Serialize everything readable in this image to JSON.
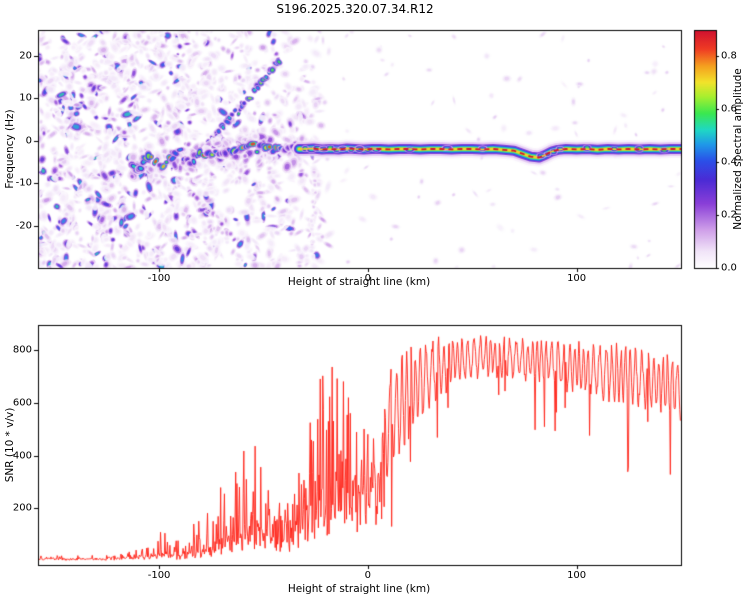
{
  "title": "S196.2025.320.07.34.R12",
  "colors": {
    "background": "#ffffff",
    "axis": "#000000",
    "snr_line": "#ff2015"
  },
  "chart_data": [
    {
      "type": "heatmap",
      "name": "doppler-spectrogram",
      "xlabel": "Height of straight line (km)",
      "ylabel": "Frequency (Hz)",
      "xlim": [
        -158,
        150
      ],
      "ylim": [
        -30,
        26
      ],
      "xticks": [
        -100,
        0,
        100
      ],
      "yticks": [
        -20,
        -10,
        0,
        10,
        20
      ],
      "colorbar": {
        "label": "Normalized spectral amplitude",
        "min": 0,
        "max": 0.9,
        "ticks": [
          "0.0",
          "0.2",
          "0.4",
          "0.6",
          "0.8"
        ],
        "stops": [
          {
            "p": 0.0,
            "c": "#ffffff"
          },
          {
            "p": 0.07,
            "c": "#f1e4f8"
          },
          {
            "p": 0.16,
            "c": "#cf9fe9"
          },
          {
            "p": 0.27,
            "c": "#8a3fd8"
          },
          {
            "p": 0.37,
            "c": "#4b2bd5"
          },
          {
            "p": 0.45,
            "c": "#2b50e8"
          },
          {
            "p": 0.52,
            "c": "#1f9ae8"
          },
          {
            "p": 0.58,
            "c": "#1fd8c4"
          },
          {
            "p": 0.65,
            "c": "#3be84f"
          },
          {
            "p": 0.72,
            "c": "#a8ef2f"
          },
          {
            "p": 0.78,
            "c": "#f2e32b"
          },
          {
            "p": 0.85,
            "c": "#f59e1f"
          },
          {
            "p": 0.92,
            "c": "#ef3b24"
          },
          {
            "p": 1.0,
            "c": "#cf1030"
          }
        ]
      },
      "trace": {
        "description": "Meteor head echo: Doppler frequency of peak spectral amplitude vs height; tight multicolor line with red dashed core near -2 Hz for heights above -30 km, scattered blob track wandering between -7 and -1 Hz below",
        "points": [
          [
            -113,
            -5.5
          ],
          [
            -110,
            -6.5
          ],
          [
            -107,
            -5
          ],
          [
            -104,
            -4
          ],
          [
            -101,
            -6
          ],
          [
            -98,
            -7
          ],
          [
            -96,
            -5.5
          ],
          [
            -93,
            -4
          ],
          [
            -90,
            -3
          ],
          [
            -87,
            -4.5
          ],
          [
            -84,
            -5
          ],
          [
            -81,
            -3.5
          ],
          [
            -78,
            -2.5
          ],
          [
            -75,
            -3.5
          ],
          [
            -72,
            -3
          ],
          [
            -69,
            -2
          ],
          [
            -66,
            -3
          ],
          [
            -63,
            -2.5
          ],
          [
            -60,
            -2.5
          ],
          [
            -57,
            -1.2
          ],
          [
            -54,
            -2
          ],
          [
            -51,
            -1.5
          ],
          [
            -48,
            -1.8
          ],
          [
            -45,
            -2.2
          ],
          [
            -42,
            -2
          ],
          [
            -39,
            -1.8
          ],
          [
            -36,
            -2
          ],
          [
            -33,
            -2
          ],
          [
            -30,
            -2
          ],
          [
            -26,
            -1.9
          ],
          [
            -22,
            -2.1
          ],
          [
            -18,
            -2
          ],
          [
            -14,
            -2.1
          ],
          [
            -10,
            -1.9
          ],
          [
            -6,
            -2
          ],
          [
            -2,
            -2.1
          ],
          [
            2,
            -2
          ],
          [
            6,
            -2
          ],
          [
            10,
            -2.1
          ],
          [
            15,
            -2
          ],
          [
            20,
            -2
          ],
          [
            25,
            -2.1
          ],
          [
            30,
            -2
          ],
          [
            35,
            -2
          ],
          [
            40,
            -2.1
          ],
          [
            45,
            -2
          ],
          [
            50,
            -2
          ],
          [
            55,
            -2.1
          ],
          [
            60,
            -2
          ],
          [
            65,
            -2.2
          ],
          [
            70,
            -2.4
          ],
          [
            74,
            -3.1
          ],
          [
            78,
            -3.8
          ],
          [
            82,
            -4
          ],
          [
            85,
            -3.4
          ],
          [
            88,
            -2.6
          ],
          [
            91,
            -2.2
          ],
          [
            95,
            -2
          ],
          [
            100,
            -2.1
          ],
          [
            105,
            -2
          ],
          [
            110,
            -2.2
          ],
          [
            115,
            -2
          ],
          [
            120,
            -2.1
          ],
          [
            125,
            -2
          ],
          [
            130,
            -2.1
          ],
          [
            135,
            -2
          ],
          [
            140,
            -2.1
          ],
          [
            145,
            -2
          ],
          [
            150,
            -2
          ]
        ],
        "bead_positions": [
          -30,
          -27,
          -24,
          -21,
          -18,
          -15,
          -12,
          -8,
          -4,
          0,
          4,
          20,
          38,
          55,
          83,
          86,
          89,
          92,
          105,
          118,
          130,
          142
        ],
        "cloud_count": 160
      },
      "streaks": [
        {
          "from": [
            -78,
            -2
          ],
          "to": [
            -42,
            19
          ],
          "step": 1.6,
          "v": [
            0.3,
            0.72
          ],
          "size": [
            2.2,
            4.6
          ]
        },
        {
          "from": [
            -86,
            -12
          ],
          "to": [
            -64,
            -23
          ],
          "step": 2.2,
          "v": [
            0.08,
            0.26
          ],
          "size": [
            2.0,
            4.0
          ]
        },
        {
          "from": [
            -27,
            -27
          ],
          "to": [
            -25,
            -8
          ],
          "step": 2.0,
          "v": [
            0.05,
            0.12
          ],
          "size": [
            1.6,
            3.0
          ]
        }
      ],
      "noise": {
        "seed": 1337,
        "left_count": 1500,
        "right_count": 90
      }
    },
    {
      "type": "line",
      "name": "snr-profile",
      "xlabel": "Height of straight line (km)",
      "ylabel": "SNR (10 * v/v)",
      "xlim": [
        -158,
        150
      ],
      "ylim": [
        -15,
        895
      ],
      "xticks": [
        -100,
        0,
        100
      ],
      "yticks": [
        200,
        400,
        600,
        800
      ],
      "line_color": "#ff2015",
      "seed": 4242,
      "envelope_description": "[height km, typical SNR, spike max SNR] read from figure",
      "envelope": [
        [
          -158,
          8,
          20
        ],
        [
          -120,
          10,
          25
        ],
        [
          -105,
          20,
          60
        ],
        [
          -97,
          30,
          130
        ],
        [
          -90,
          25,
          90
        ],
        [
          -82,
          40,
          160
        ],
        [
          -75,
          60,
          220
        ],
        [
          -68,
          90,
          300
        ],
        [
          -62,
          120,
          380
        ],
        [
          -56,
          150,
          470
        ],
        [
          -50,
          170,
          460
        ],
        [
          -45,
          140,
          380
        ],
        [
          -40,
          170,
          430
        ],
        [
          -36,
          160,
          420
        ],
        [
          -32,
          180,
          480
        ],
        [
          -28,
          220,
          620
        ],
        [
          -24,
          260,
          780
        ],
        [
          -20,
          280,
          840
        ],
        [
          -16,
          300,
          820
        ],
        [
          -12,
          340,
          860
        ],
        [
          -8,
          320,
          700
        ],
        [
          -4,
          360,
          640
        ],
        [
          0,
          420,
          620
        ],
        [
          6,
          480,
          680
        ],
        [
          12,
          560,
          760
        ],
        [
          18,
          620,
          800
        ],
        [
          24,
          680,
          830
        ],
        [
          30,
          720,
          850
        ],
        [
          40,
          760,
          860
        ],
        [
          55,
          780,
          860
        ],
        [
          70,
          770,
          850
        ],
        [
          85,
          760,
          850
        ],
        [
          100,
          740,
          840
        ],
        [
          115,
          720,
          830
        ],
        [
          130,
          700,
          820
        ],
        [
          142,
          680,
          800
        ],
        [
          150,
          660,
          780
        ]
      ]
    }
  ]
}
